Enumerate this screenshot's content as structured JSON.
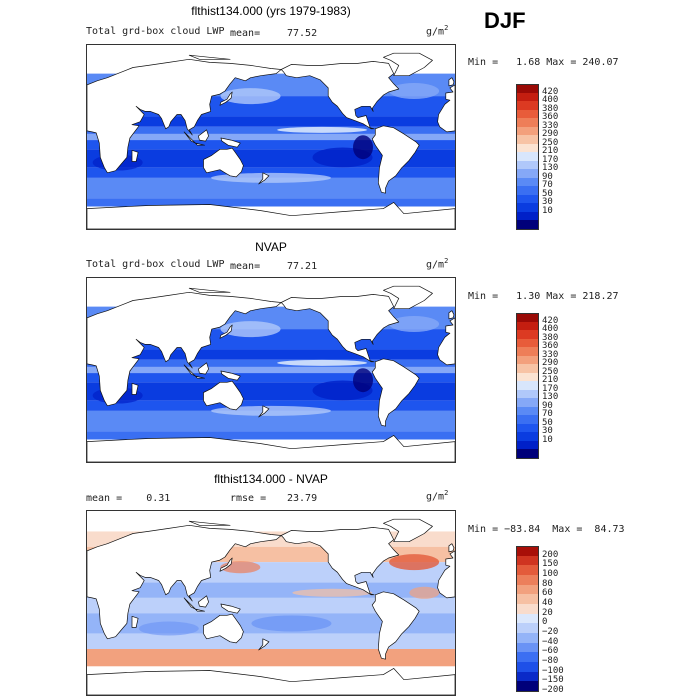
{
  "season": "DJF",
  "colors": {
    "abs_scale": [
      "#00007a",
      "#0020c8",
      "#0a3ce0",
      "#1e55ee",
      "#3a6ff2",
      "#5a8af5",
      "#85a8f7",
      "#b0c8fa",
      "#d8e6fc",
      "#fbe3d2",
      "#f7c3a5",
      "#f3a07c",
      "#ee7e58",
      "#e85c3a",
      "#dc3a22",
      "#c41e10",
      "#9a0a06"
    ],
    "diff_scale": [
      "#00007a",
      "#0a2ac8",
      "#1e50e8",
      "#3c6ff2",
      "#6a93f5",
      "#94b4f8",
      "#bcd0fa",
      "#dce8fc",
      "#f9dccc",
      "#f6c0a3",
      "#f2a17e",
      "#ec7f5b",
      "#e35b3b",
      "#cf3420",
      "#a80f08"
    ]
  },
  "panels": [
    {
      "title": "flthist134.000 (yrs 1979-1983)",
      "left_label": "Total grd-box cloud LWP",
      "stat_label": "mean=",
      "stat_value": "77.52",
      "units": "g/m",
      "units_sup": "2",
      "minmax": "Min =   1.68 Max = 240.07",
      "levels": [
        "420",
        "400",
        "380",
        "360",
        "330",
        "290",
        "250",
        "210",
        "170",
        "130",
        "90",
        "70",
        "50",
        "30",
        "10"
      ]
    },
    {
      "title": "NVAP",
      "left_label": "Total grd-box cloud LWP",
      "stat_label": "mean=",
      "stat_value": "77.21",
      "units": "g/m",
      "units_sup": "2",
      "minmax": "Min =   1.30 Max = 218.27",
      "levels": [
        "420",
        "400",
        "380",
        "360",
        "330",
        "290",
        "250",
        "210",
        "170",
        "130",
        "90",
        "70",
        "50",
        "30",
        "10"
      ]
    },
    {
      "title": "flthist134.000 - NVAP",
      "left_label": "mean =    0.31",
      "stat_label": "rmse =",
      "stat_value": "23.79",
      "units": "g/m",
      "units_sup": "2",
      "minmax": "Min = −83.84  Max =  84.73",
      "levels": [
        "200",
        "150",
        "100",
        "80",
        "60",
        "40",
        "20",
        "0",
        "−20",
        "−40",
        "−60",
        "−80",
        "−100",
        "−150",
        "−200"
      ]
    }
  ],
  "chart_data": [
    {
      "type": "heatmap",
      "title": "flthist134.000 (yrs 1979-1983)",
      "variable": "Total grd-box cloud LWP",
      "units": "g/m2",
      "mean": 77.52,
      "min": 1.68,
      "max": 240.07,
      "contour_levels": [
        10,
        30,
        50,
        70,
        90,
        130,
        170,
        210,
        250,
        290,
        330,
        360,
        380,
        400,
        420
      ]
    },
    {
      "type": "heatmap",
      "title": "NVAP",
      "variable": "Total grd-box cloud LWP",
      "units": "g/m2",
      "mean": 77.21,
      "min": 1.3,
      "max": 218.27,
      "contour_levels": [
        10,
        30,
        50,
        70,
        90,
        130,
        170,
        210,
        250,
        290,
        330,
        360,
        380,
        400,
        420
      ]
    },
    {
      "type": "heatmap",
      "title": "flthist134.000 - NVAP",
      "units": "g/m2",
      "mean": 0.31,
      "rmse": 23.79,
      "min": -83.84,
      "max": 84.73,
      "contour_levels": [
        -200,
        -150,
        -100,
        -80,
        -60,
        -40,
        -20,
        0,
        20,
        40,
        60,
        80,
        100,
        150,
        200
      ]
    }
  ]
}
